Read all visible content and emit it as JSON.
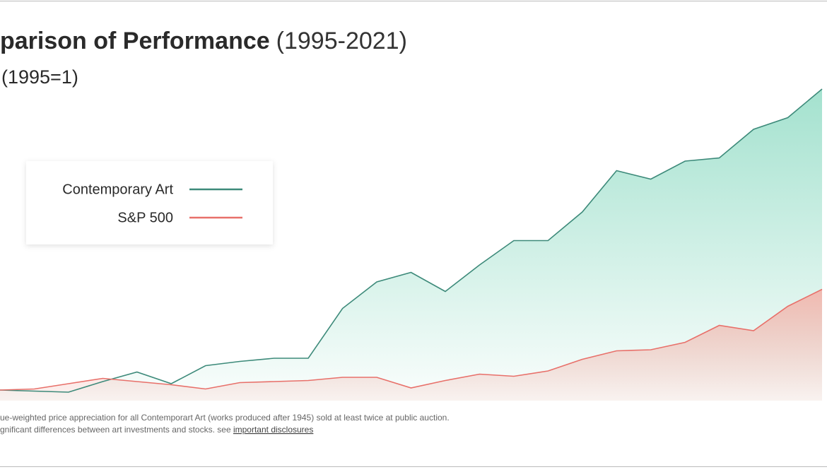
{
  "chart_data": {
    "type": "area",
    "title": "parison of Performance",
    "title_suffix": "(1995-2021)",
    "subtitle": "(1995=1)",
    "footnote": [
      "ue-weighted price appreciation for all Contemporart Art (works produced after 1945) sold at least twice at public auction.",
      "gnificant differences between art investments and stocks. see "
    ],
    "footnote_link": "important disclosures",
    "series": [
      {
        "name": "Contemporary Art",
        "color": "#3d8a7a",
        "fill": "#9fe0cc",
        "values": [
          1.0,
          0.9,
          0.8,
          1.8,
          2.7,
          1.6,
          3.3,
          3.7,
          4.0,
          4.0,
          8.7,
          11.2,
          12.1,
          10.3,
          12.8,
          15.1,
          15.1,
          17.8,
          21.7,
          20.9,
          22.6,
          22.9,
          25.6,
          26.7,
          29.4
        ]
      },
      {
        "name": "S&P 500",
        "color": "#e8706a",
        "fill": "#f3b3aa",
        "values": [
          1.0,
          1.1,
          1.6,
          2.1,
          1.8,
          1.5,
          1.1,
          1.7,
          1.8,
          1.9,
          2.2,
          2.2,
          1.2,
          1.9,
          2.5,
          2.3,
          2.8,
          3.9,
          4.7,
          4.8,
          5.5,
          7.1,
          6.6,
          8.9,
          10.5
        ]
      }
    ]
  }
}
